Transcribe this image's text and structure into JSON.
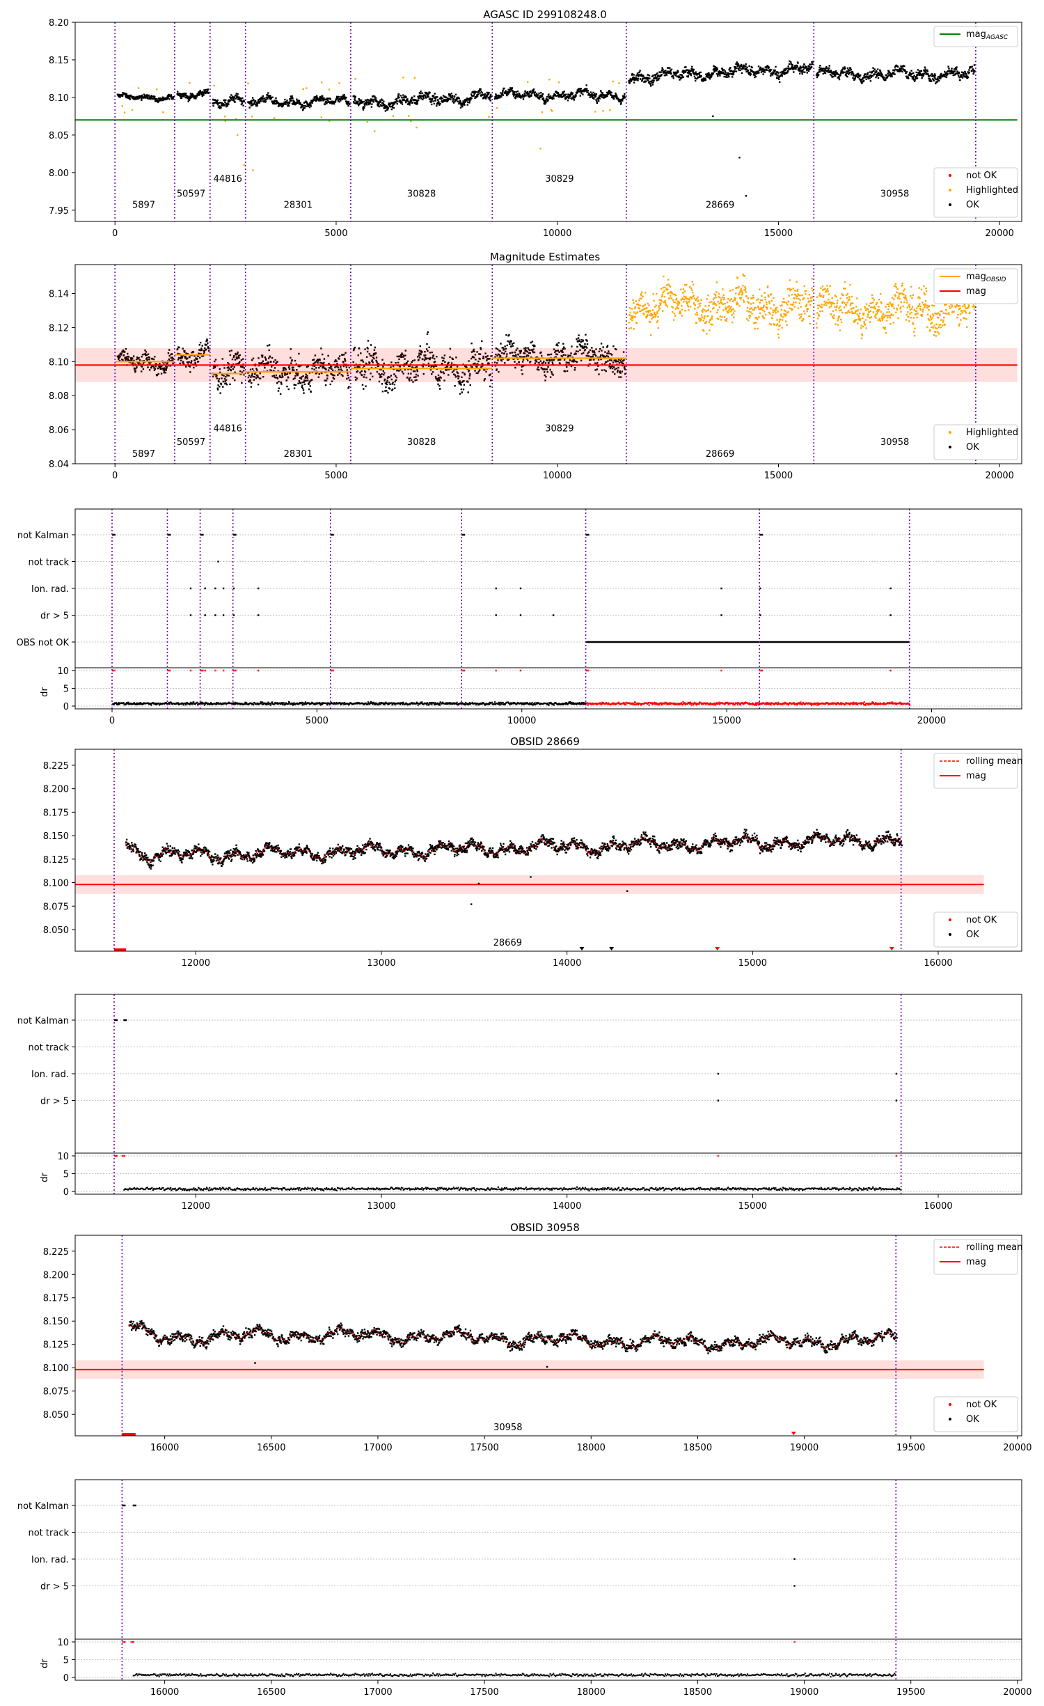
{
  "figure": {
    "panels": [
      {
        "id": "p1",
        "title": "AGASC ID 299108248.0",
        "legend": [
          {
            "label": "mag",
            "sub": "AGASC",
            "kind": "line",
            "color": "#008000"
          },
          {
            "label": "not OK",
            "kind": "dot",
            "color": "#ff0000"
          },
          {
            "label": "Highlighted",
            "kind": "dot",
            "color": "#ffa500"
          },
          {
            "label": "OK",
            "kind": "dot",
            "color": "#000000"
          }
        ]
      },
      {
        "id": "p2",
        "title": "Magnitude Estimates",
        "legend": [
          {
            "label": "mag",
            "sub": "OBSID",
            "kind": "line",
            "color": "#ffa500"
          },
          {
            "label": "mag",
            "kind": "line",
            "color": "#ff0000"
          },
          {
            "label": "Highlighted",
            "kind": "dot",
            "color": "#ffa500"
          },
          {
            "label": "OK",
            "kind": "dot",
            "color": "#000000"
          }
        ]
      },
      {
        "id": "p3",
        "title": ""
      },
      {
        "id": "p4",
        "title": "OBSID 28669",
        "legend": [
          {
            "label": "rolling mean",
            "kind": "dash",
            "color": "#ff0000"
          },
          {
            "label": "mag",
            "kind": "line",
            "color": "#ff0000"
          },
          {
            "label": "not OK",
            "kind": "dot",
            "color": "#ff0000"
          },
          {
            "label": "OK",
            "kind": "dot",
            "color": "#000000"
          }
        ]
      },
      {
        "id": "p5",
        "title": ""
      },
      {
        "id": "p6",
        "title": "OBSID 30958",
        "legend": [
          {
            "label": "rolling mean",
            "kind": "dash",
            "color": "#ff0000"
          },
          {
            "label": "mag",
            "kind": "line",
            "color": "#ff0000"
          },
          {
            "label": "not OK",
            "kind": "dot",
            "color": "#ff0000"
          },
          {
            "label": "OK",
            "kind": "dot",
            "color": "#000000"
          }
        ]
      },
      {
        "id": "p7",
        "title": ""
      }
    ],
    "flag_rows": [
      "not Kalman",
      "not track",
      "Ion. rad.",
      "dr > 5",
      "OBS not OK"
    ],
    "dr_label": "dr",
    "dr_ticks": [
      10,
      5,
      0
    ]
  },
  "chart_data": [
    {
      "type": "scatter",
      "title": "AGASC ID 299108248.0",
      "xlim": [
        -900,
        20500
      ],
      "ylim": [
        7.935,
        8.2
      ],
      "xticks": [
        0,
        5000,
        10000,
        15000,
        20000
      ],
      "yticks": [
        7.95,
        8.0,
        8.05,
        8.1,
        8.15,
        8.2
      ],
      "ytick_labels": [
        "7.95",
        "8.00",
        "8.05",
        "8.10",
        "8.15",
        "8.20"
      ],
      "mag_agasc": 8.07,
      "obs_boundaries": [
        0,
        1350,
        2150,
        2950,
        5330,
        8530,
        11560,
        15800,
        19460
      ],
      "obsids": [
        {
          "label": "5897",
          "x": 650,
          "y": 7.953
        },
        {
          "label": "50597",
          "x": 1720,
          "y": 7.968
        },
        {
          "label": "44816",
          "x": 2550,
          "y": 7.988
        },
        {
          "label": "28301",
          "x": 4140,
          "y": 7.953
        },
        {
          "label": "30828",
          "x": 6930,
          "y": 7.968
        },
        {
          "label": "30829",
          "x": 10050,
          "y": 7.988
        },
        {
          "label": "28669",
          "x": 13680,
          "y": 7.953
        },
        {
          "label": "30958",
          "x": 17630,
          "y": 7.968
        }
      ],
      "segments": [
        {
          "x0": 0,
          "x1": 1350,
          "mean": 8.1,
          "amp": 0.005
        },
        {
          "x0": 1350,
          "x1": 2150,
          "mean": 8.104,
          "amp": 0.006
        },
        {
          "x0": 2150,
          "x1": 2950,
          "mean": 8.094,
          "amp": 0.008
        },
        {
          "x0": 2950,
          "x1": 5330,
          "mean": 8.094,
          "amp": 0.008
        },
        {
          "x0": 5330,
          "x1": 8530,
          "mean": 8.097,
          "amp": 0.01
        },
        {
          "x0": 8530,
          "x1": 11560,
          "mean": 8.103,
          "amp": 0.008
        },
        {
          "x0": 11560,
          "x1": 15800,
          "mean": 8.133,
          "amp": 0.01
        },
        {
          "x0": 15800,
          "x1": 19460,
          "mean": 8.131,
          "amp": 0.01
        }
      ],
      "highlighted_outliers": [
        [
          2750,
          8.05
        ],
        [
          2900,
          8.01
        ],
        [
          3100,
          8.003
        ],
        [
          5850,
          8.055
        ],
        [
          6800,
          8.06
        ],
        [
          9600,
          8.032
        ],
        [
          200,
          8.08
        ]
      ],
      "ok_outliers": [
        [
          14100,
          8.02
        ],
        [
          14250,
          7.969
        ],
        [
          13500,
          8.075
        ]
      ],
      "legend_position": "upper right"
    },
    {
      "type": "scatter",
      "title": "Magnitude Estimates",
      "xlim": [
        -900,
        20500
      ],
      "ylim": [
        8.04,
        8.157
      ],
      "xticks": [
        0,
        5000,
        10000,
        15000,
        20000
      ],
      "yticks": [
        8.04,
        8.06,
        8.08,
        8.1,
        8.12,
        8.14
      ],
      "ytick_labels": [
        "8.04",
        "8.06",
        "8.08",
        "8.10",
        "8.12",
        "8.14"
      ],
      "mag": 8.098,
      "mag_band": [
        8.088,
        8.108
      ],
      "obsid_mag": [
        {
          "x0": 0,
          "x1": 1350,
          "mag": 8.1
        },
        {
          "x0": 1350,
          "x1": 2150,
          "mag": 8.104
        },
        {
          "x0": 2150,
          "x1": 2950,
          "mag": 8.093
        },
        {
          "x0": 2950,
          "x1": 5330,
          "mag": 8.094
        },
        {
          "x0": 5330,
          "x1": 8530,
          "mag": 8.096
        },
        {
          "x0": 8530,
          "x1": 11560,
          "mag": 8.102
        }
      ],
      "obs_boundaries": [
        0,
        1350,
        2150,
        2950,
        5330,
        8530,
        11560,
        15800,
        19460
      ],
      "obsids": [
        {
          "label": "5897",
          "x": 650,
          "y": 8.044
        },
        {
          "label": "50597",
          "x": 1720,
          "y": 8.051
        },
        {
          "label": "44816",
          "x": 2550,
          "y": 8.059
        },
        {
          "label": "28301",
          "x": 4140,
          "y": 8.044
        },
        {
          "label": "30828",
          "x": 6930,
          "y": 8.051
        },
        {
          "label": "30829",
          "x": 10050,
          "y": 8.059
        },
        {
          "label": "28669",
          "x": 13680,
          "y": 8.044
        },
        {
          "label": "30958",
          "x": 17630,
          "y": 8.051
        }
      ],
      "legend_position": "upper right"
    },
    {
      "type": "scatter",
      "xlim": [
        -900,
        22200
      ],
      "xticks": [
        0,
        5000,
        10000,
        15000,
        20000
      ],
      "obs_boundaries": [
        0,
        1350,
        2150,
        2950,
        5330,
        8530,
        11560,
        15800,
        19460
      ],
      "obs_not_ok_range": [
        11560,
        19460
      ],
      "not_kalman_x": [
        0,
        1350,
        2150,
        2950,
        5330,
        8530,
        11560,
        15800
      ],
      "not_track_x": [
        2570
      ],
      "ion_rad_x": [
        1900,
        2250,
        2500,
        2700,
        2950,
        3550,
        9350,
        9950,
        14850,
        15800,
        18980
      ],
      "dr5_x": [
        1900,
        2250,
        2500,
        2700,
        2950,
        3550,
        9350,
        9950,
        10750,
        14850,
        15800,
        18980
      ]
    },
    {
      "type": "scatter",
      "title": "OBSID 28669",
      "xlim": [
        11350,
        16450
      ],
      "ylim": [
        8.027,
        8.242
      ],
      "xticks": [
        12000,
        13000,
        14000,
        15000,
        16000
      ],
      "yticks": [
        8.05,
        8.075,
        8.1,
        8.125,
        8.15,
        8.175,
        8.2,
        8.225
      ],
      "ytick_labels": [
        "8.050",
        "8.075",
        "8.100",
        "8.125",
        "8.150",
        "8.175",
        "8.200",
        "8.225"
      ],
      "mag": 8.098,
      "mag_band": [
        8.088,
        8.108
      ],
      "obs_range": [
        11560,
        15800
      ],
      "data_start": 11620,
      "obsid_label": {
        "label": "28669",
        "x": 13680,
        "y": 8.033
      },
      "ok_outliers": [
        [
          13480,
          8.077
        ],
        [
          13520,
          8.099
        ],
        [
          14320,
          8.091
        ],
        [
          13800,
          8.106
        ]
      ],
      "bottom_markers": [
        {
          "x": 14080,
          "c": "#000000"
        },
        {
          "x": 14240,
          "c": "#000000"
        },
        {
          "x": 14810,
          "c": "#ff0000"
        },
        {
          "x": 15750,
          "c": "#ff0000"
        }
      ],
      "legend_position": "upper right"
    },
    {
      "type": "scatter",
      "xlim": [
        11350,
        16450
      ],
      "xticks": [
        12000,
        13000,
        14000,
        15000,
        16000
      ],
      "obs_range": [
        11560,
        15800
      ],
      "not_kalman_x": [
        11560,
        11610
      ],
      "ion_rad_x": [
        14810,
        15770
      ],
      "dr5_x": [
        14810,
        15770
      ]
    },
    {
      "type": "scatter",
      "title": "OBSID 30958",
      "xlim": [
        15580,
        20020
      ],
      "ylim": [
        8.027,
        8.242
      ],
      "xticks": [
        16000,
        16500,
        17000,
        17500,
        18000,
        18500,
        19000,
        19500,
        20000
      ],
      "yticks": [
        8.05,
        8.075,
        8.1,
        8.125,
        8.15,
        8.175,
        8.2,
        8.225
      ],
      "ytick_labels": [
        "8.050",
        "8.075",
        "8.100",
        "8.125",
        "8.150",
        "8.175",
        "8.200",
        "8.225"
      ],
      "mag": 8.098,
      "mag_band": [
        8.088,
        8.108
      ],
      "obs_range": [
        15800,
        19430
      ],
      "data_start": 15830,
      "obsid_label": {
        "label": "30958",
        "x": 17610,
        "y": 8.033
      },
      "ok_outliers": [
        [
          16420,
          8.105
        ],
        [
          17790,
          8.101
        ]
      ],
      "bottom_markers": [
        {
          "x": 18950,
          "c": "#ff0000"
        }
      ],
      "legend_position": "upper right"
    },
    {
      "type": "scatter",
      "xlim": [
        15580,
        20020
      ],
      "xticks": [
        16000,
        16500,
        17000,
        17500,
        18000,
        18500,
        19000,
        19500,
        20000
      ],
      "obs_range": [
        15800,
        19430
      ],
      "not_kalman_x": [
        15800,
        15850
      ],
      "ion_rad_x": [
        18950
      ],
      "dr5_x": [
        18950
      ]
    }
  ]
}
